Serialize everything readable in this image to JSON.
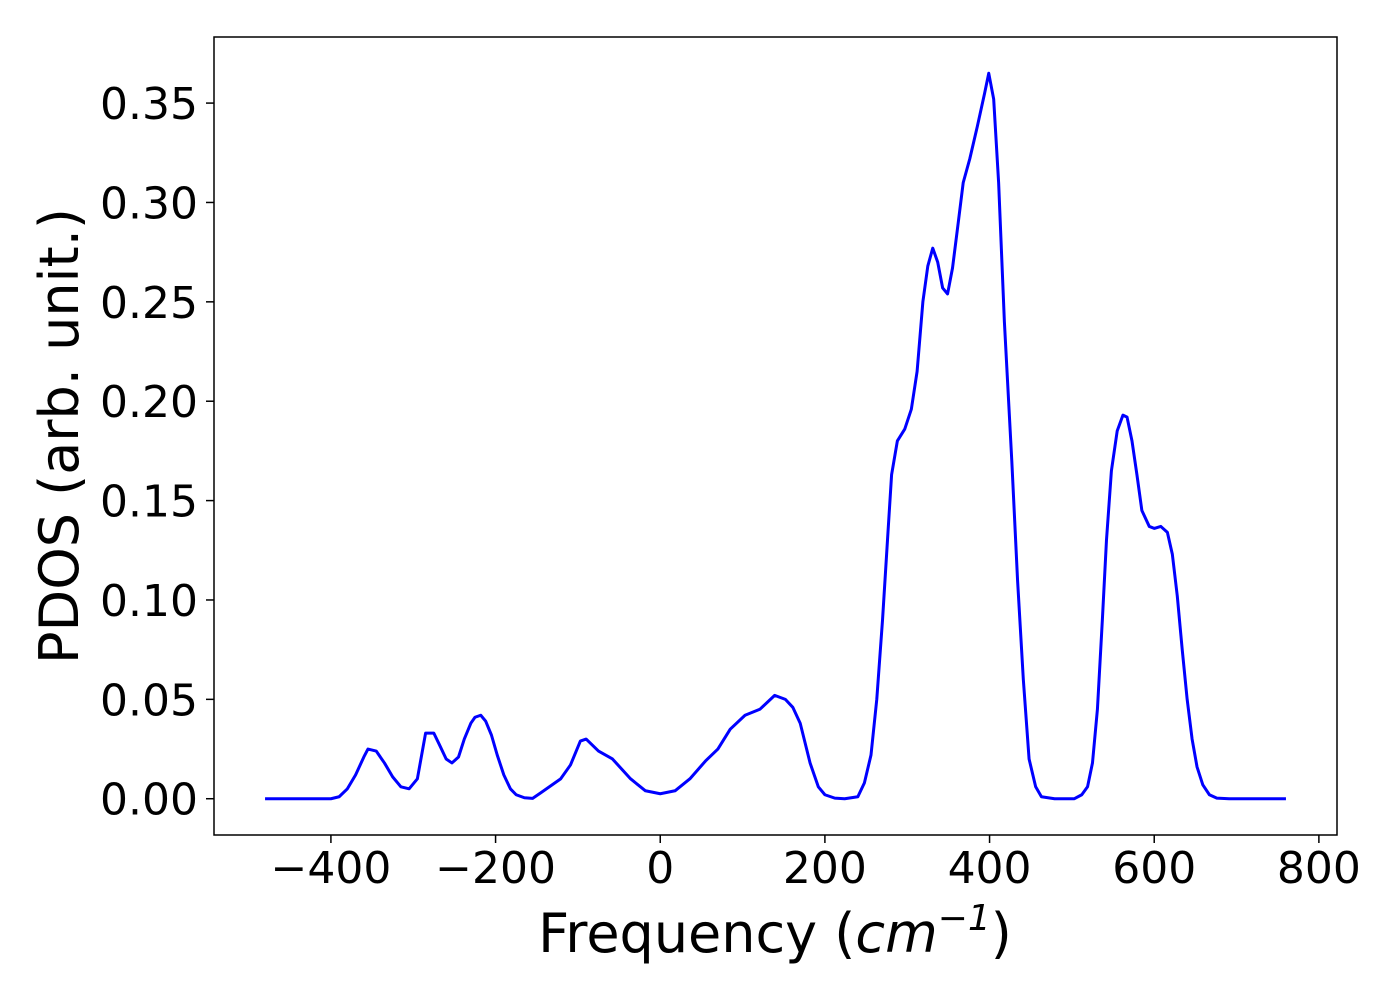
{
  "chart_data": {
    "type": "line",
    "xlabel": {
      "prefix": "Frequency (",
      "unit": "cm",
      "exponent": "−1",
      "suffix": ")"
    },
    "ylabel": "PDOS (arb. unit.)",
    "xlim": [
      -542,
      822
    ],
    "ylim": [
      -0.01825,
      0.38325
    ],
    "xticks": [
      {
        "value": -400,
        "label": "−400"
      },
      {
        "value": -200,
        "label": "−200"
      },
      0,
      200,
      400,
      600,
      800
    ],
    "yticks": [
      {
        "value": 0,
        "label": "0.00"
      },
      {
        "value": 0.05,
        "label": "0.05"
      },
      {
        "value": 0.1,
        "label": "0.10"
      },
      {
        "value": 0.15,
        "label": "0.15"
      },
      {
        "value": 0.2,
        "label": "0.20"
      },
      {
        "value": 0.25,
        "label": "0.25"
      },
      {
        "value": 0.3,
        "label": "0.30"
      },
      {
        "value": 0.35,
        "label": "0.35"
      }
    ],
    "grid": false,
    "series": [
      {
        "color": "#0000ff",
        "x": [
          -480,
          -460,
          -440,
          -420,
          -400,
          -390,
          -380,
          -370,
          -360,
          -355,
          -345,
          -335,
          -325,
          -315,
          -305,
          -295,
          -285,
          -275,
          -268,
          -260,
          -253,
          -245,
          -238,
          -230,
          -225,
          -218,
          -212,
          -205,
          -198,
          -190,
          -182,
          -175,
          -165,
          -155,
          -145,
          -121,
          -109,
          -97,
          -90,
          -75,
          -58,
          -36,
          -18,
          0,
          18,
          36,
          55,
          70,
          85,
          103,
          121,
          139,
          152,
          161,
          170,
          182,
          192,
          200,
          212,
          224,
          240,
          248,
          256,
          263,
          270,
          276,
          281,
          288,
          297,
          305,
          312,
          319,
          325,
          331,
          337,
          343,
          349,
          355,
          362,
          368,
          376,
          385,
          394,
          399,
          405,
          411,
          418,
          427,
          434,
          441,
          448,
          456,
          463,
          479,
          503,
          512,
          519,
          525,
          531,
          537,
          542,
          548,
          555,
          562,
          567,
          573,
          579,
          585,
          594,
          600,
          608,
          616,
          622,
          628,
          634,
          640,
          646,
          652,
          659,
          667,
          676,
          691,
          720,
          760
        ],
        "values": [
          0,
          0,
          0,
          0,
          0,
          0.001,
          0.005,
          0.012,
          0.021,
          0.025,
          0.024,
          0.018,
          0.011,
          0.006,
          0.005,
          0.01,
          0.033,
          0.033,
          0.027,
          0.02,
          0.018,
          0.021,
          0.03,
          0.038,
          0.041,
          0.042,
          0.039,
          0.032,
          0.022,
          0.012,
          0.005,
          0.002,
          0.0005,
          0.0002,
          0.003,
          0.01,
          0.017,
          0.029,
          0.03,
          0.024,
          0.02,
          0.01,
          0.004,
          0.0025,
          0.004,
          0.01,
          0.019,
          0.025,
          0.035,
          0.042,
          0.045,
          0.052,
          0.05,
          0.046,
          0.038,
          0.018,
          0.006,
          0.002,
          0.0003,
          0,
          0.001,
          0.008,
          0.022,
          0.05,
          0.09,
          0.13,
          0.163,
          0.18,
          0.186,
          0.196,
          0.215,
          0.25,
          0.268,
          0.277,
          0.27,
          0.257,
          0.254,
          0.267,
          0.29,
          0.31,
          0.322,
          0.338,
          0.355,
          0.365,
          0.352,
          0.31,
          0.24,
          0.17,
          0.11,
          0.06,
          0.02,
          0.006,
          0.001,
          0,
          0,
          0.002,
          0.006,
          0.018,
          0.045,
          0.09,
          0.13,
          0.165,
          0.185,
          0.193,
          0.192,
          0.18,
          0.163,
          0.145,
          0.137,
          0.136,
          0.137,
          0.134,
          0.123,
          0.102,
          0.075,
          0.05,
          0.03,
          0.016,
          0.007,
          0.002,
          0.0003,
          0,
          0,
          0
        ]
      }
    ]
  }
}
